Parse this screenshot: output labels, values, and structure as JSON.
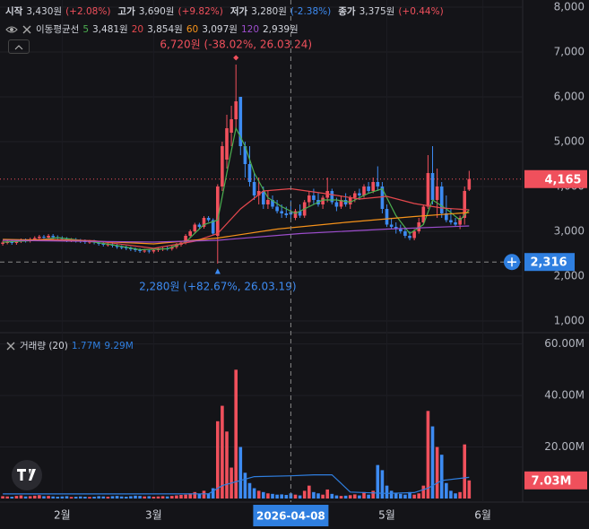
{
  "header": {
    "ohlc": [
      {
        "label": "시작",
        "value": "3,430원",
        "change": "(+2.08%)",
        "color": "#f0505c"
      },
      {
        "label": "고가",
        "value": "3,690원",
        "change": "(+9.82%)",
        "color": "#f0505c"
      },
      {
        "label": "저가",
        "value": "3,280원",
        "change": "(-2.38%)",
        "color": "#3d8bf2"
      },
      {
        "label": "종가",
        "value": "3,375원",
        "change": "(+0.44%)",
        "color": "#f0505c"
      }
    ],
    "ma_title": "이동평균선"
  },
  "chart_data": [
    {
      "type": "candlestick",
      "up_color": "#f0505c",
      "down_color": "#3d8bf2",
      "xlim": [
        -0.6,
        113.7
      ],
      "xticks": [
        {
          "value": 13,
          "label": "2월"
        },
        {
          "value": 33,
          "label": "3월"
        },
        {
          "value": 84,
          "label": "5월"
        },
        {
          "value": 105,
          "label": "6월"
        }
      ],
      "crosshair_x": {
        "value": 63,
        "label": "2026-04-08"
      },
      "crosshair_y": {
        "value": 2316,
        "label": "2,316"
      },
      "last": {
        "value": 4165,
        "label": "4,165"
      },
      "ylim": [
        760,
        8160
      ],
      "yticks": [
        {
          "value": 1000,
          "label": "1,000"
        },
        {
          "value": 2000,
          "label": "2,000"
        },
        {
          "value": 3000,
          "label": "3,000"
        },
        {
          "value": 4000,
          "label": "4,000"
        },
        {
          "value": 5000,
          "label": "5,000"
        },
        {
          "value": 6000,
          "label": "6,000"
        },
        {
          "value": 7000,
          "label": "7,000"
        },
        {
          "value": 8000,
          "label": "8,000"
        }
      ],
      "grid": true,
      "high_label": "6,720원 (-38.02%, 26.03.24)",
      "low_label": "2,280원 (+82.67%, 26.03.19)",
      "open": [
        2720,
        2750,
        2760,
        2740,
        2780,
        2800,
        2790,
        2820,
        2850,
        2880,
        2860,
        2900,
        2870,
        2850,
        2830,
        2800,
        2810,
        2790,
        2780,
        2760,
        2770,
        2750,
        2720,
        2700,
        2710,
        2680,
        2650,
        2640,
        2620,
        2600,
        2580,
        2560,
        2570,
        2550,
        2580,
        2600,
        2620,
        2610,
        2650,
        2700,
        2750,
        2900,
        3000,
        3150,
        3100,
        3300,
        3250,
        2900,
        4000,
        4600,
        5200,
        5500,
        6000,
        4900,
        4500,
        4100,
        3800,
        3900,
        3600,
        3700,
        3550,
        3450,
        3400,
        3430,
        3300,
        3450,
        3350,
        3650,
        3800,
        3700,
        3600,
        3750,
        3900,
        3650,
        3550,
        3700,
        3600,
        3750,
        3850,
        3800,
        4000,
        3900,
        4100,
        4000,
        3500,
        3150,
        3100,
        3050,
        3000,
        2900,
        2850,
        3000,
        3200,
        3550,
        4300,
        3700,
        4000,
        3400,
        3250,
        3200,
        3150,
        3300,
        3930
      ],
      "high": [
        2790,
        2800,
        2800,
        2820,
        2840,
        2840,
        2860,
        2890,
        2920,
        2920,
        2940,
        2940,
        2910,
        2890,
        2870,
        2850,
        2850,
        2830,
        2820,
        2810,
        2810,
        2790,
        2760,
        2750,
        2750,
        2720,
        2690,
        2680,
        2660,
        2640,
        2620,
        2610,
        2610,
        2620,
        2640,
        2660,
        2660,
        2690,
        2740,
        2790,
        2940,
        3040,
        3190,
        3190,
        3340,
        3340,
        3290,
        4050,
        5000,
        5600,
        5800,
        6720,
        6000,
        5000,
        4900,
        4300,
        4200,
        4000,
        3900,
        3800,
        3700,
        3600,
        3550,
        3690,
        3500,
        3600,
        3700,
        3900,
        3950,
        3850,
        3800,
        4200,
        3950,
        3750,
        3800,
        3850,
        3800,
        3900,
        3950,
        4050,
        4100,
        4200,
        4450,
        4100,
        3600,
        3300,
        3200,
        3150,
        3100,
        3000,
        3050,
        3300,
        3600,
        4700,
        4900,
        4400,
        4100,
        3800,
        3500,
        3300,
        3350,
        4000,
        4350
      ],
      "low": [
        2680,
        2710,
        2700,
        2700,
        2740,
        2750,
        2750,
        2780,
        2810,
        2820,
        2820,
        2830,
        2810,
        2790,
        2760,
        2760,
        2750,
        2740,
        2720,
        2720,
        2710,
        2680,
        2660,
        2660,
        2640,
        2610,
        2600,
        2580,
        2560,
        2540,
        2520,
        2520,
        2510,
        2510,
        2540,
        2560,
        2570,
        2570,
        2610,
        2660,
        2710,
        2860,
        2960,
        3060,
        3060,
        3210,
        2910,
        2280,
        3900,
        4400,
        4900,
        5300,
        4700,
        4200,
        4000,
        3700,
        3600,
        3500,
        3500,
        3500,
        3400,
        3300,
        3300,
        3280,
        3250,
        3300,
        3300,
        3550,
        3600,
        3550,
        3500,
        3650,
        3600,
        3450,
        3500,
        3550,
        3500,
        3650,
        3700,
        3750,
        3850,
        3850,
        3900,
        3400,
        3100,
        3050,
        2950,
        2950,
        2850,
        2800,
        2800,
        2950,
        3150,
        3500,
        3600,
        3300,
        3300,
        3200,
        3150,
        3100,
        3050,
        3150,
        3900
      ],
      "close": [
        2750,
        2760,
        2740,
        2780,
        2800,
        2790,
        2820,
        2850,
        2880,
        2860,
        2900,
        2870,
        2850,
        2830,
        2800,
        2810,
        2790,
        2780,
        2760,
        2770,
        2750,
        2720,
        2700,
        2710,
        2680,
        2650,
        2640,
        2620,
        2600,
        2580,
        2560,
        2570,
        2550,
        2580,
        2600,
        2620,
        2610,
        2650,
        2700,
        2750,
        2900,
        3000,
        3150,
        3100,
        3300,
        3250,
        2950,
        4000,
        4900,
        5300,
        5500,
        5900,
        4900,
        4500,
        4100,
        3800,
        3900,
        3600,
        3700,
        3550,
        3450,
        3400,
        3360,
        3375,
        3450,
        3350,
        3650,
        3800,
        3700,
        3600,
        3750,
        3900,
        3650,
        3550,
        3700,
        3600,
        3750,
        3850,
        3800,
        4000,
        3900,
        4100,
        4000,
        3500,
        3150,
        3100,
        3050,
        3000,
        2900,
        2850,
        3000,
        3200,
        3550,
        4300,
        3700,
        4000,
        3400,
        3250,
        3200,
        3150,
        3300,
        3900,
        4165
      ],
      "series": [
        {
          "name": "5",
          "color": "#4caf50",
          "legend_value": "3,481원",
          "x": [
            0,
            6,
            12,
            18,
            24,
            30,
            36,
            40,
            44,
            47,
            49,
            51,
            53,
            55,
            58,
            61,
            64,
            67,
            70,
            73,
            76,
            80,
            83,
            86,
            89,
            92,
            94,
            97,
            100,
            102
          ],
          "values": [
            2760,
            2790,
            2860,
            2790,
            2700,
            2590,
            2610,
            2760,
            3150,
            3250,
            4300,
            5300,
            4900,
            4300,
            3750,
            3550,
            3400,
            3550,
            3700,
            3700,
            3650,
            3850,
            3950,
            3350,
            2950,
            3150,
            3700,
            3500,
            3250,
            3481
          ]
        },
        {
          "name": "20",
          "color": "#e5484d",
          "legend_value": "3,854원",
          "x": [
            0,
            10,
            20,
            33,
            42,
            47,
            52,
            57,
            63,
            70,
            78,
            84,
            90,
            96,
            102
          ],
          "values": [
            2800,
            2820,
            2790,
            2620,
            2780,
            2950,
            3500,
            3900,
            3950,
            3850,
            3720,
            3780,
            3620,
            3520,
            3480
          ]
        },
        {
          "name": "60",
          "color": "#f7931a",
          "legend_value": "3,097원",
          "x": [
            0,
            20,
            33,
            47,
            60,
            75,
            90,
            102
          ],
          "values": [
            2820,
            2780,
            2720,
            2850,
            3050,
            3200,
            3330,
            3420
          ]
        },
        {
          "name": "120",
          "color": "#9c4dcc",
          "legend_value": "2,939원",
          "x": [
            0,
            33,
            47,
            65,
            84,
            102
          ],
          "values": [
            2800,
            2760,
            2800,
            2950,
            3050,
            3120
          ]
        }
      ]
    },
    {
      "type": "bar",
      "title": "거래량 (20)",
      "legend_values": [
        "1.77M",
        "9.29M"
      ],
      "ylim": [
        0,
        63000000
      ],
      "yticks": [
        {
          "value": 20000000,
          "label": "20.00M"
        },
        {
          "value": 40000000,
          "label": "40.00M"
        },
        {
          "value": 60000000,
          "label": "60.00M"
        }
      ],
      "last": {
        "value": 7030000,
        "label": "7.03M"
      },
      "values": [
        900000,
        800000,
        700000,
        1000000,
        1200000,
        800000,
        900000,
        1100000,
        1300000,
        900000,
        1000000,
        800000,
        700000,
        800000,
        900000,
        600000,
        700000,
        800000,
        700000,
        600000,
        700000,
        900000,
        800000,
        700000,
        900000,
        1000000,
        800000,
        700000,
        900000,
        1100000,
        1000000,
        800000,
        900000,
        700000,
        800000,
        900000,
        800000,
        1000000,
        1200000,
        1400000,
        1500000,
        2000000,
        2500000,
        1800000,
        3000000,
        2000000,
        4000000,
        30000000,
        36000000,
        26000000,
        12000000,
        50000000,
        20000000,
        10000000,
        6000000,
        4000000,
        3000000,
        2500000,
        2000000,
        1800000,
        1500000,
        1600000,
        1400000,
        2000000,
        1500000,
        1200000,
        3000000,
        5000000,
        2500000,
        2000000,
        1500000,
        3500000,
        1800000,
        1200000,
        1000000,
        1100000,
        1300000,
        1600000,
        1200000,
        2500000,
        1500000,
        3000000,
        13000000,
        11000000,
        5000000,
        3000000,
        2000000,
        1800000,
        1500000,
        2500000,
        1500000,
        2000000,
        5000000,
        34000000,
        28000000,
        20000000,
        17000000,
        6000000,
        3000000,
        2000000,
        2500000,
        21000000,
        7030000
      ],
      "ma": {
        "color": "#2f7fe0",
        "x": [
          0,
          45,
          48,
          55,
          63,
          68,
          72,
          76,
          84,
          90,
          93,
          96,
          102
        ],
        "values": [
          1770000,
          1800000,
          5000000,
          8500000,
          8800000,
          9200000,
          9200000,
          2500000,
          2000000,
          2300000,
          4000000,
          7000000,
          8200000
        ]
      }
    }
  ]
}
